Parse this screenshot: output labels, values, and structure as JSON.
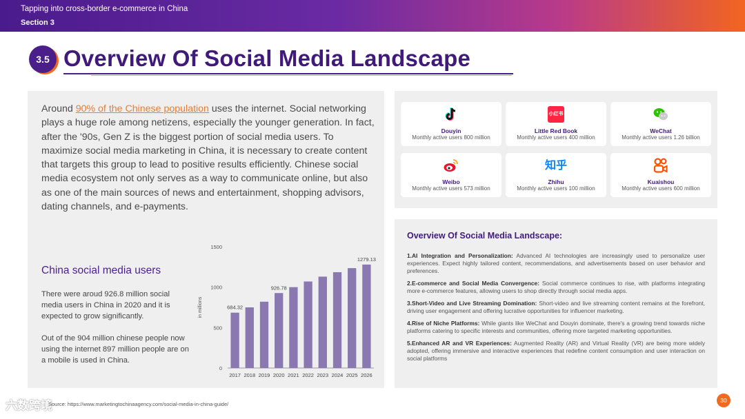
{
  "header": {
    "deck_title": "Tapping into cross-border e-commerce in China",
    "section": "Section 3"
  },
  "slide": {
    "number_badge": "3.5",
    "title": "Overview Of Social Media Landscape"
  },
  "intro": {
    "lead": "Around ",
    "highlight": "90% of the Chinese population",
    "body": " uses the internet. Social networking plays a huge role among netizens, especially the younger generation. In fact, after the '90s, Gen Z is the biggest portion of social media users. To maximize social media marketing in China, it is necessary to create content that targets this group to lead to positive results efficiently. Chinese social media ecosystem not only serves as a way to communicate online, but also as one of the main sources of news and entertainment, shopping advisors, dating channels, and e-payments."
  },
  "users_section": {
    "title": "China social media users",
    "para1": "There were aroud 926.8 million social media users in China in 2020 and it is expected to grow significantly.",
    "para2": "Out of the 904 million chinese people now using the internet 897 million people are on a mobile is used in China."
  },
  "chart_data": {
    "type": "bar",
    "title": "",
    "xlabel": "",
    "ylabel": "in millions",
    "categories": [
      "2017",
      "2018",
      "2019",
      "2020",
      "2021",
      "2022",
      "2023",
      "2024",
      "2025",
      "2026"
    ],
    "values": [
      684.32,
      750,
      820,
      926.78,
      1000,
      1070,
      1130,
      1185,
      1235,
      1279.13
    ],
    "data_labels": {
      "0": "684.32",
      "3": "926.78",
      "9": "1279.13"
    },
    "yticks": [
      "0",
      "500",
      "1000",
      "1500"
    ],
    "ylim": [
      0,
      1500
    ],
    "bar_color": "#8a78b0"
  },
  "platforms": [
    {
      "name": "Douyin",
      "desc": "Monthly active users 800 million",
      "icon": "douyin-icon"
    },
    {
      "name": "Little Red Book",
      "desc": "Monthly active users 400 million",
      "icon": "little-red-book-icon",
      "logo_text": "小红书"
    },
    {
      "name": "WeChat",
      "desc": "Monthly active users 1.26 billion",
      "icon": "wechat-icon"
    },
    {
      "name": "Weibo",
      "desc": "Monthly active users 573 million",
      "icon": "weibo-icon"
    },
    {
      "name": "Zhihu",
      "desc": "Monthly active users 100 million",
      "icon": "zhihu-icon",
      "logo_text": "知乎"
    },
    {
      "name": "Kuaishou",
      "desc": "Monthly active users 600 million",
      "icon": "kuaishou-icon"
    }
  ],
  "overview": {
    "title": "Overview Of Social Media Landscape:",
    "items": [
      {
        "head": "1.AI Integration and Personalization:",
        "text": " Advanced AI technologies are increasingly used to personalize user experiences. Expect highly tailored content, recommendations, and advertisements based on user behavior and preferences."
      },
      {
        "head": "2.E-commerce and Social Media Convergence:",
        "text": " Social commerce continues to rise, with platforms integrating more e-commerce features, allowing users to shop directly through social media apps."
      },
      {
        "head": "3.Short-Video and Live Streaming Domination:",
        "text": " Short-video and live streaming content remains at the forefront, driving user engagement and offering lucrative opportunities for influencer marketing."
      },
      {
        "head": "4.Rise of Niche Platforms:",
        "text": " While giants like WeChat and Douyin dominate, there's a growing trend towards niche platforms catering to specific interests and communities, offering more targeted marketing opportunities."
      },
      {
        "head": "5.Enhanced AR and VR Experiences:",
        "text": " Augmented Reality (AR) and Virtual Reality (VR) are being more widely adopted, offering immersive and interactive experiences that redefine content consumption and user interaction on social platforms"
      }
    ]
  },
  "footer": {
    "source": "Source: https://www.marketingtochinaagency.com/social-media-in-china-guide/",
    "watermark": "六数跨境",
    "page": "30"
  },
  "colors": {
    "brand_purple": "#4a1f8a",
    "accent_orange": "#f26a1f",
    "panel_bg": "#efefef"
  }
}
